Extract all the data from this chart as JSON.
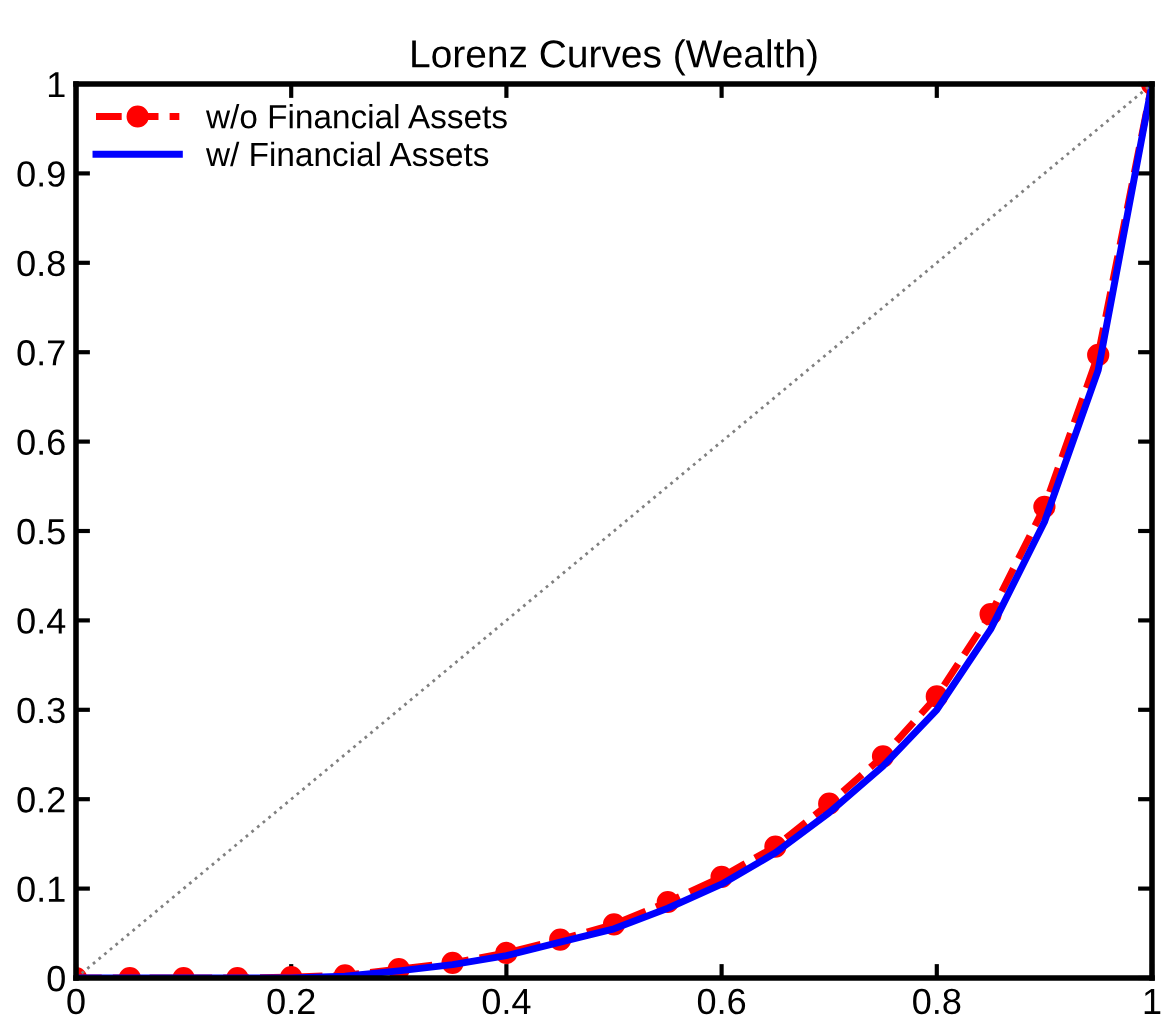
{
  "chart_data": {
    "type": "line",
    "title": "Lorenz Curves (Wealth)",
    "x": [
      0,
      0.05,
      0.1,
      0.15,
      0.2,
      0.25,
      0.3,
      0.35,
      0.4,
      0.45,
      0.5,
      0.55,
      0.6,
      0.65,
      0.7,
      0.75,
      0.8,
      0.85,
      0.9,
      0.95,
      1
    ],
    "series": [
      {
        "name": "w/o Financial Assets",
        "color": "#ff0000",
        "line_style": "dashed",
        "marker": "circle",
        "values": [
          0,
          0,
          0,
          0,
          0.001,
          0.003,
          0.01,
          0.017,
          0.028,
          0.043,
          0.06,
          0.085,
          0.113,
          0.147,
          0.195,
          0.248,
          0.315,
          0.407,
          0.527,
          0.697,
          1
        ]
      },
      {
        "name": "w/ Financial Assets",
        "color": "#0000ff",
        "line_style": "solid",
        "marker": "none",
        "values": [
          0,
          0,
          0,
          0,
          0,
          0.002,
          0.008,
          0.015,
          0.025,
          0.04,
          0.055,
          0.078,
          0.105,
          0.14,
          0.185,
          0.237,
          0.3,
          0.39,
          0.51,
          0.68,
          1
        ]
      },
      {
        "color": "#808080",
        "line_style": "dotted",
        "marker": "none",
        "x": [
          0,
          1
        ],
        "values": [
          0,
          1
        ]
      }
    ],
    "xlim": [
      0,
      1
    ],
    "ylim": [
      0,
      1
    ],
    "xticks": [
      0,
      0.2,
      0.4,
      0.6,
      0.8,
      1
    ],
    "yticks": [
      0,
      0.1,
      0.2,
      0.3,
      0.4,
      0.5,
      0.6,
      0.7,
      0.8,
      0.9,
      1
    ],
    "grid": false,
    "legend": "top left"
  }
}
